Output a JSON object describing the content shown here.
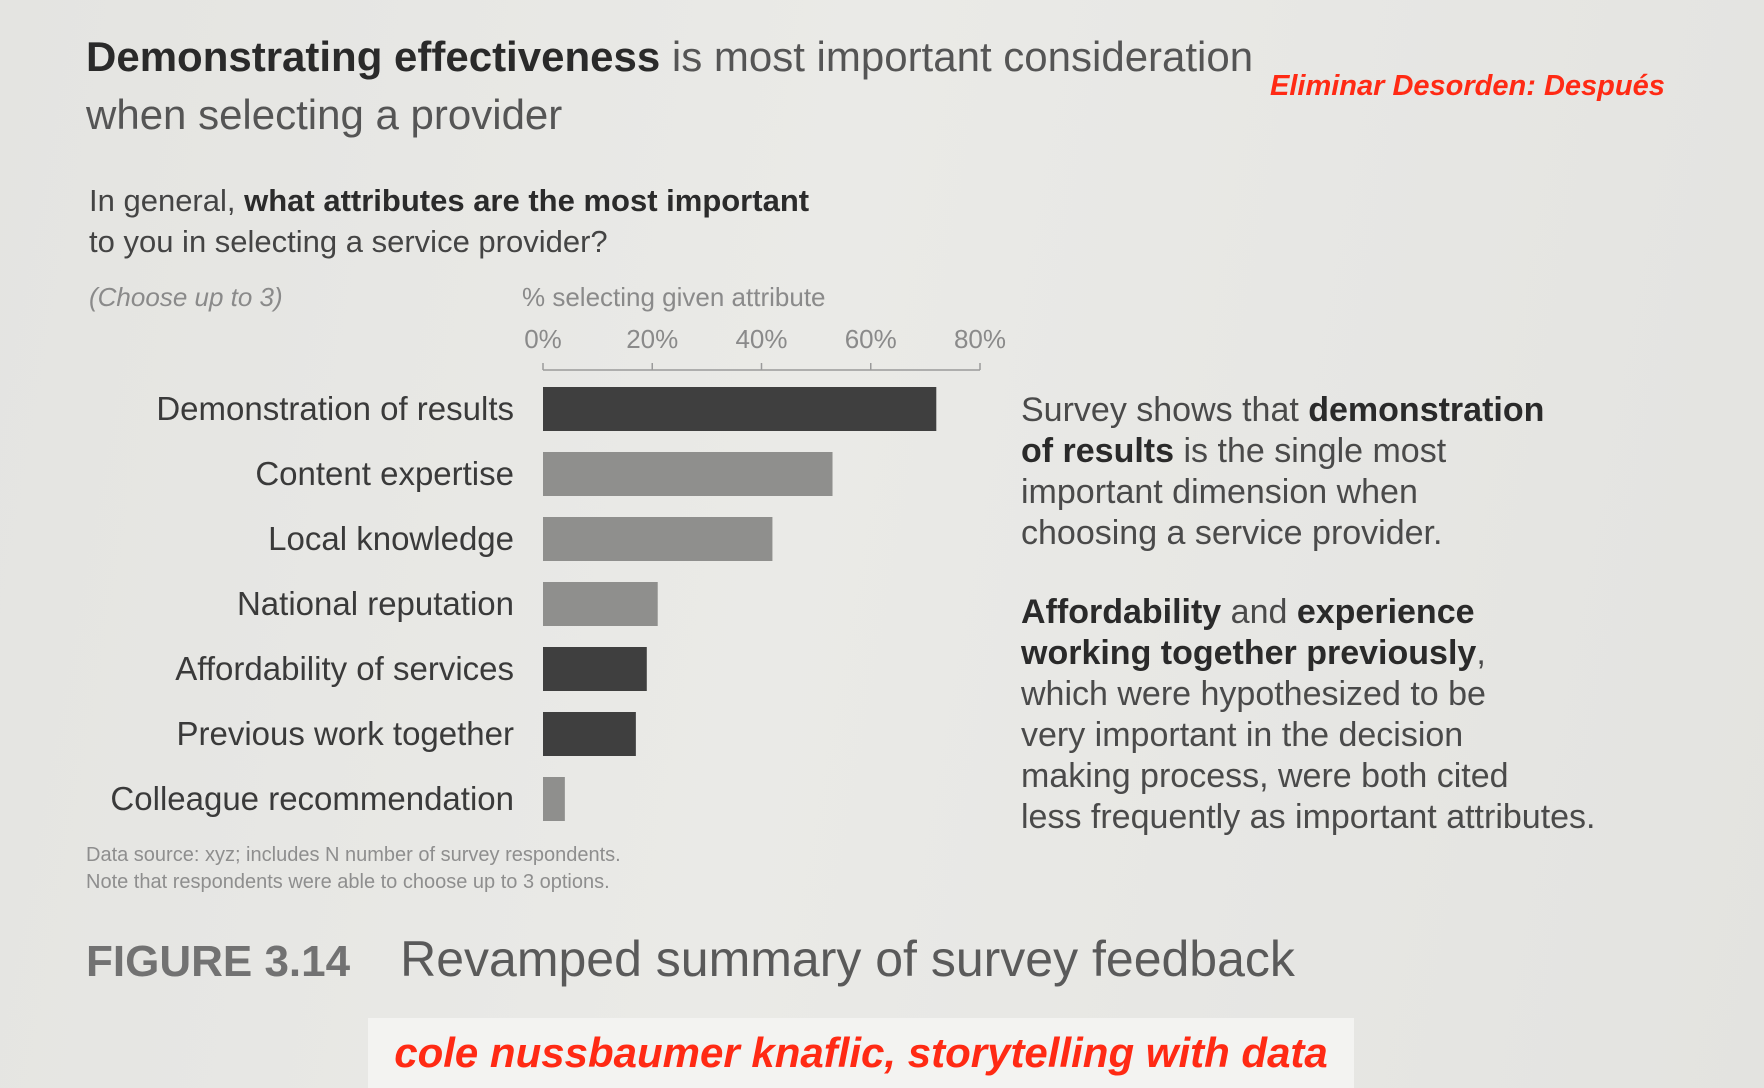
{
  "headline": {
    "bold": "Demonstrating effectiveness",
    "rest_line1": " is most important consideration",
    "line2": "when selecting a provider"
  },
  "tag": "Eliminar Desorden: Después",
  "question": {
    "pre": "In general, ",
    "bold": "what attributes are the most important",
    "line2": "to you in selecting a service provider?"
  },
  "choose_note": "(Choose up to 3)",
  "chart_data": {
    "type": "bar",
    "orientation": "horizontal",
    "xlabel": "% selecting given attribute",
    "xlim": [
      0,
      80
    ],
    "ticks": [
      "0%",
      "20%",
      "40%",
      "60%",
      "80%"
    ],
    "categories": [
      "Demonstration of results",
      "Content expertise",
      "Local knowledge",
      "National reputation",
      "Affordability of services",
      "Previous work together",
      "Colleague recommendation"
    ],
    "values": [
      72,
      53,
      42,
      21,
      19,
      17,
      4
    ],
    "colors": [
      "#3f3f3f",
      "#8f8f8d",
      "#8f8f8d",
      "#8f8f8d",
      "#3f3f3f",
      "#3f3f3f",
      "#8f8f8d"
    ]
  },
  "annotation1": {
    "pre": "Survey shows that ",
    "bold1": "demonstration",
    "bold2": "of results",
    "rest": " is the single most",
    "line3": "important dimension when",
    "line4": "choosing a service provider."
  },
  "annotation2": {
    "bold1": "Affordability",
    "mid": " and ",
    "bold2": "experience",
    "bold3": "working together previously",
    "comma": ",",
    "line3": "which were hypothesized to be",
    "line4": "very important in the decision",
    "line5": "making process, were both cited",
    "line6": "less frequently as important attributes."
  },
  "source": {
    "line1": "Data source: xyz; includes N number of survey respondents.",
    "line2": "Note that respondents were able to choose up to 3 options."
  },
  "figure": {
    "number": "FIGURE 3.14",
    "caption": "Revamped summary of survey feedback"
  },
  "credit": "cole nussbaumer knaflic, storytelling with data"
}
